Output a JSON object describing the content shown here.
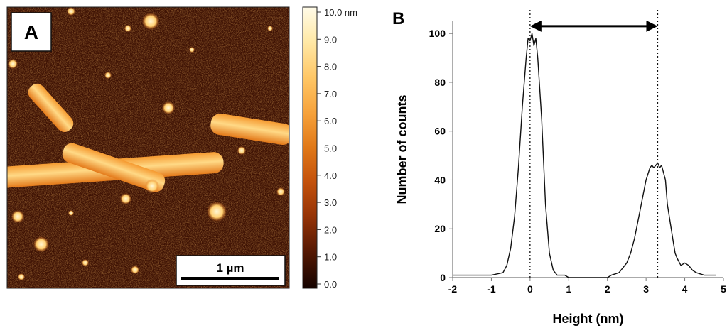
{
  "panel_a": {
    "label": "A",
    "scale_bar_label": "1 µm",
    "colorbar": {
      "ticks": [
        "10.0 nm",
        "9.0",
        "8.0",
        "7.0",
        "6.0",
        "5.0",
        "4.0",
        "3.0",
        "2.0",
        "1.0",
        "0.0"
      ],
      "colors": [
        "#fffbe8",
        "#ffe9a8",
        "#ffc766",
        "#f6a13a",
        "#ea8420",
        "#d86512",
        "#be4c0a",
        "#9a3506",
        "#752404",
        "#4e1503",
        "#1a0400"
      ]
    }
  },
  "chart_data": {
    "type": "line",
    "panel_label": "B",
    "xlabel": "Height (nm)",
    "ylabel": "Number of counts",
    "xlim": [
      -2,
      5
    ],
    "ylim": [
      0,
      105
    ],
    "x_ticks": [
      "-2",
      "-1",
      "0",
      "1",
      "2",
      "3",
      "4",
      "5"
    ],
    "y_ticks": [
      "0",
      "20",
      "40",
      "60",
      "80",
      "100"
    ],
    "reference_lines_x": [
      0.0,
      3.3
    ],
    "arrow": {
      "from_x": 0.0,
      "to_x": 3.3,
      "y": 103
    },
    "series": [
      {
        "x": [
          -2.0,
          -1.0,
          -0.7,
          -0.6,
          -0.5,
          -0.4,
          -0.3,
          -0.2,
          -0.1,
          -0.05,
          0.0,
          0.05,
          0.1,
          0.15,
          0.2,
          0.3,
          0.4,
          0.5,
          0.6,
          0.7,
          0.9,
          1.0,
          1.5,
          2.0,
          2.1,
          2.3,
          2.5,
          2.6,
          2.7,
          2.8,
          2.9,
          3.0,
          3.1,
          3.15,
          3.2,
          3.3,
          3.35,
          3.4,
          3.5,
          3.55,
          3.6,
          3.7,
          3.75,
          3.8,
          3.9,
          4.0,
          4.1,
          4.2,
          4.3,
          4.5,
          4.8
        ],
        "y": [
          1,
          1,
          2,
          5,
          12,
          25,
          45,
          70,
          90,
          98,
          97,
          100,
          95,
          98,
          90,
          65,
          30,
          10,
          3,
          1,
          1,
          0,
          0,
          0,
          1,
          2,
          6,
          10,
          16,
          24,
          32,
          40,
          45,
          46,
          45,
          47,
          45,
          46,
          40,
          30,
          25,
          15,
          10,
          8,
          5,
          6,
          5,
          3,
          2,
          1,
          1
        ]
      }
    ]
  }
}
